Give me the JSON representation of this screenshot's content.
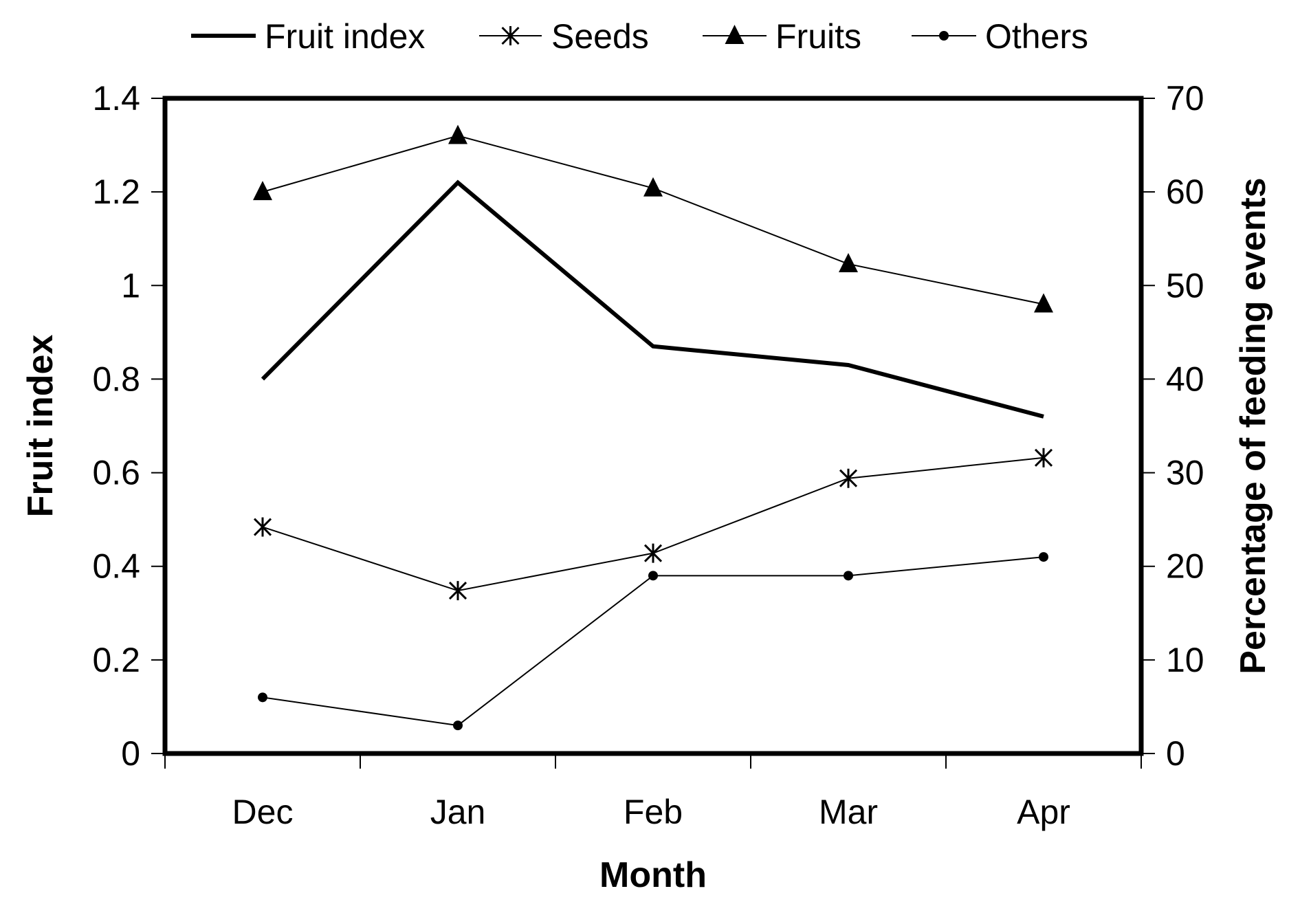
{
  "chart_data": {
    "type": "line",
    "categories": [
      "Dec",
      "Jan",
      "Feb",
      "Mar",
      "Apr"
    ],
    "xlabel": "Month",
    "ylabel_left": "Fruit index",
    "ylabel_right": "Percentage of feeding events",
    "ylim_left": [
      0,
      1.4
    ],
    "ylim_right": [
      0,
      70
    ],
    "yticks_left": [
      "0",
      "0.2",
      "0.4",
      "0.6",
      "0.8",
      "1",
      "1.2",
      "1.4"
    ],
    "yticks_right": [
      "0",
      "10",
      "20",
      "30",
      "40",
      "50",
      "60",
      "70"
    ],
    "grid": false,
    "legend_position": "top",
    "series": [
      {
        "name": "Fruit index",
        "axis": "left",
        "marker": "none",
        "line": "thick",
        "values": [
          0.8,
          1.22,
          0.87,
          0.83,
          0.72
        ]
      },
      {
        "name": "Seeds",
        "axis": "right",
        "marker": "asterisk",
        "line": "thin",
        "values": [
          24.2,
          17.4,
          21.4,
          29.4,
          31.6
        ]
      },
      {
        "name": "Fruits",
        "axis": "right",
        "marker": "triangle",
        "line": "thin",
        "values": [
          60.0,
          66.0,
          60.4,
          52.3,
          48.0
        ]
      },
      {
        "name": "Others",
        "axis": "right",
        "marker": "dot",
        "line": "thin",
        "values": [
          6.0,
          3.0,
          19.0,
          19.0,
          21.0
        ]
      }
    ],
    "colors": {
      "line": "#000000",
      "background": "#ffffff"
    }
  }
}
